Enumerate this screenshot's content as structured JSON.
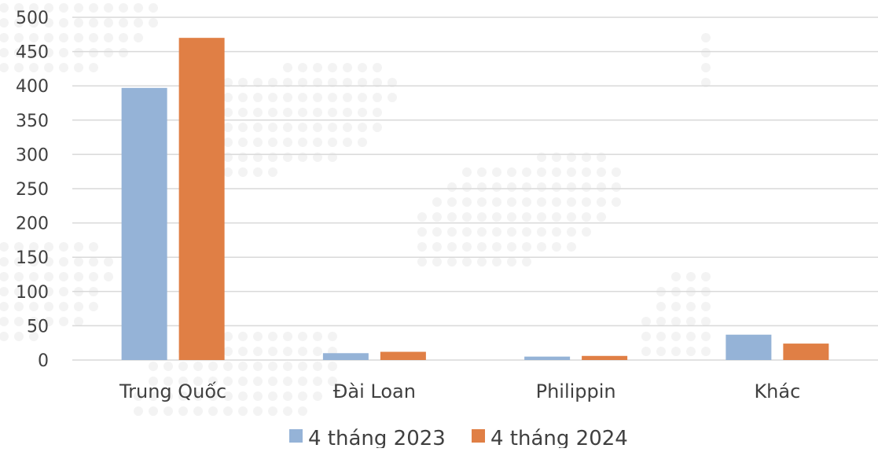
{
  "chart_data": {
    "type": "bar",
    "categories": [
      "Trung Quốc",
      "Đài Loan",
      "Philippin",
      "Khác"
    ],
    "series": [
      {
        "name": "4 tháng 2023",
        "color": "#95b3d7",
        "values": [
          397,
          10,
          5,
          37
        ]
      },
      {
        "name": "4 tháng 2024",
        "color": "#e07f45",
        "values": [
          470,
          12,
          6,
          24
        ]
      }
    ],
    "yticks": [
      "0",
      "50",
      "100",
      "150",
      "200",
      "250",
      "300",
      "350",
      "400",
      "450",
      "500"
    ],
    "ylim": [
      0,
      500
    ],
    "grid": true,
    "legend_position": "bottom",
    "gridline_color": "#d9d9d9"
  }
}
